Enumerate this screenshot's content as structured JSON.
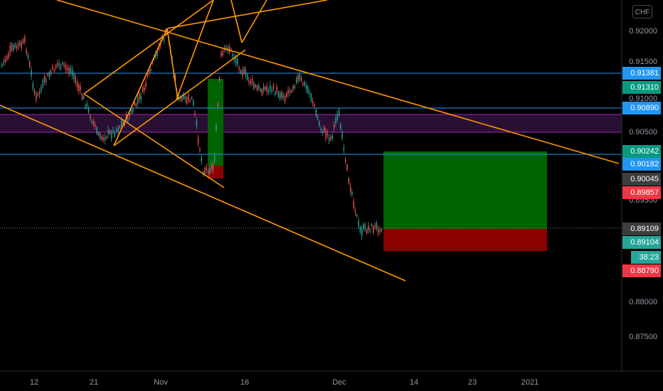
{
  "currency": "CHF",
  "price_axis": {
    "ticks": [
      "0.92000",
      "0.91500",
      "0.91000",
      "0.90500",
      "0.89500",
      "0.88000",
      "0.87500"
    ]
  },
  "price_tags": [
    {
      "text": "0.91381",
      "bg": "#2196f3",
      "fg": "#ffffff"
    },
    {
      "text": "0.91310",
      "bg": "#089981",
      "fg": "#ffffff"
    },
    {
      "text": "0.90890",
      "bg": "#2196f3",
      "fg": "#ffffff"
    },
    {
      "text": "0.90242",
      "bg": "#089981",
      "fg": "#ffffff"
    },
    {
      "text": "0.90182",
      "bg": "#2196f3",
      "fg": "#ffffff"
    },
    {
      "text": "0.90045",
      "bg": "#3d3d3d",
      "fg": "#ffffff"
    },
    {
      "text": "0.89857",
      "bg": "#f23645",
      "fg": "#ffffff"
    },
    {
      "text": "0.89109",
      "bg": "#3d3d3d",
      "fg": "#ffffff"
    },
    {
      "text": "0.89104",
      "bg": "#26a69a",
      "fg": "#ffffff"
    },
    {
      "text": "38:23",
      "bg": "#26a69a",
      "fg": "#ffffff"
    },
    {
      "text": "0.88790",
      "bg": "#f23645",
      "fg": "#ffffff"
    }
  ],
  "date_axis": [
    "12",
    "21",
    "Nov",
    "16",
    "Dec",
    "14",
    "23",
    "2021"
  ],
  "colors": {
    "up": "#26a69a",
    "down": "#ef5350",
    "trendline": "#ff9800",
    "hline": "#2196f3",
    "zone_fill": "#2a0f35",
    "zone_border": "#9c27b0",
    "profit": "#006400",
    "loss": "#8b0000"
  }
}
